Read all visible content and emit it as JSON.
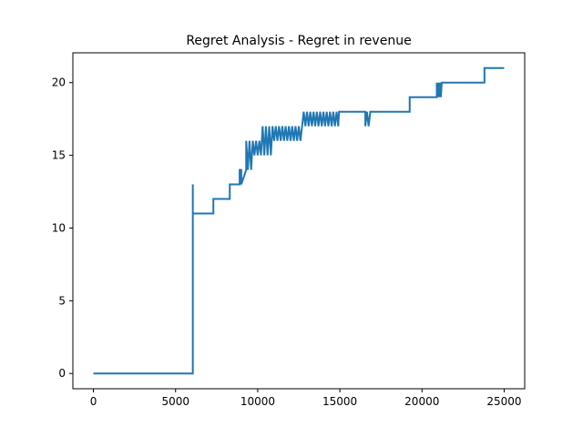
{
  "chart_data": {
    "type": "line",
    "title": "Regret Analysis - Regret in revenue",
    "xlabel": "",
    "ylabel": "",
    "xlim": [
      -1250,
      26250
    ],
    "ylim": [
      -1.05,
      22.05
    ],
    "xticks": [
      0,
      5000,
      10000,
      15000,
      20000,
      25000
    ],
    "xtick_labels": [
      "0",
      "5000",
      "10000",
      "15000",
      "20000",
      "25000"
    ],
    "yticks": [
      0,
      5,
      10,
      15,
      20
    ],
    "ytick_labels": [
      "0",
      "5",
      "10",
      "15",
      "20"
    ],
    "grid": false,
    "legend": "none",
    "line_color": "#1f77b4",
    "series": [
      {
        "x": [
          0,
          6050,
          6050,
          6050,
          6080,
          6080,
          7300,
          7300,
          7350,
          7350,
          8300,
          8300,
          8900,
          8900,
          9000,
          9000,
          9300,
          9300,
          9400,
          9500,
          9600,
          9700,
          9800,
          9900,
          10000,
          10100,
          10200,
          10300,
          10400,
          10500,
          10600,
          10700,
          10800,
          10900,
          11000,
          11100,
          11200,
          11300,
          11400,
          11500,
          11600,
          11700,
          11800,
          11900,
          12000,
          12100,
          12200,
          12300,
          12400,
          12500,
          12600,
          12700,
          12800,
          12900,
          13000,
          13100,
          13200,
          13300,
          13400,
          13500,
          13600,
          13700,
          13800,
          13900,
          14000,
          14100,
          14200,
          14300,
          14400,
          14500,
          14600,
          14700,
          14800,
          14900,
          14950,
          14950,
          16550,
          16550,
          16650,
          16750,
          16850,
          16850,
          19250,
          19250,
          20900,
          20900,
          20950,
          21000,
          21050,
          21100,
          21150,
          21200,
          21200,
          23800,
          23800,
          25000
        ],
        "y": [
          0,
          0,
          13,
          11,
          11,
          11,
          11,
          12,
          12,
          12,
          12,
          13,
          13,
          14,
          14,
          13,
          14,
          16,
          14,
          16,
          14,
          16,
          15,
          16,
          15,
          16,
          15,
          17,
          15,
          17,
          15,
          17,
          15,
          17,
          16,
          17,
          16,
          17,
          16,
          17,
          16,
          17,
          16,
          17,
          16,
          17,
          16,
          17,
          16,
          17,
          16,
          17,
          18,
          17,
          18,
          17,
          18,
          17,
          18,
          17,
          18,
          17,
          18,
          17,
          18,
          17,
          18,
          17,
          18,
          17,
          18,
          17,
          18,
          17,
          18,
          18,
          18,
          17,
          18,
          17,
          18,
          18,
          18,
          19,
          19,
          20,
          19,
          20,
          19,
          20,
          19,
          20,
          20,
          20,
          21,
          21
        ]
      }
    ]
  }
}
